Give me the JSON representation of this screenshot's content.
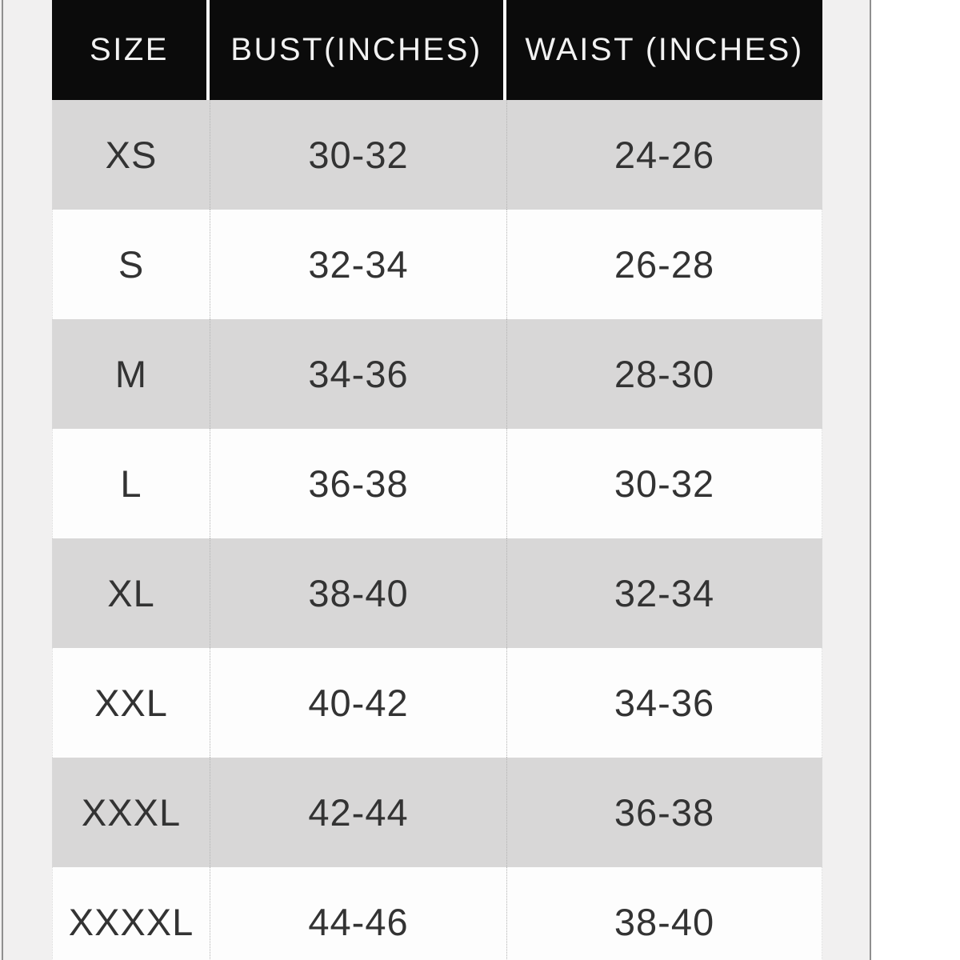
{
  "chart_data": {
    "type": "table",
    "columns": [
      {
        "id": "size",
        "label": "SIZE"
      },
      {
        "id": "bust",
        "label": "BUST(INCHES)"
      },
      {
        "id": "waist",
        "label": "WAIST (INCHES)"
      }
    ],
    "rows": [
      {
        "size": "XS",
        "bust": "30-32",
        "waist": "24-26"
      },
      {
        "size": "S",
        "bust": "32-34",
        "waist": "26-28"
      },
      {
        "size": "M",
        "bust": "34-36",
        "waist": "28-30"
      },
      {
        "size": "L",
        "bust": "36-38",
        "waist": "30-32"
      },
      {
        "size": "XL",
        "bust": "38-40",
        "waist": "32-34"
      },
      {
        "size": "XXL",
        "bust": "40-42",
        "waist": "34-36"
      },
      {
        "size": "XXXL",
        "bust": "42-44",
        "waist": "36-38"
      },
      {
        "size": "XXXXL",
        "bust": "44-46",
        "waist": "38-40"
      }
    ],
    "layout": {
      "header_position": "top",
      "row_striping": "odd-rows-gray",
      "column_divider_style": "dotted",
      "cropped_edges": [
        "top",
        "bottom"
      ]
    }
  },
  "colors": {
    "header_bg": "#0b0b0b",
    "header_text": "#f2f2f2",
    "row_alt_bg": "#d8d7d7",
    "row_bg": "#fdfdfd",
    "body_text": "#333333",
    "page_margin": "#f1f0f0",
    "edge_line": "#8f8f8f"
  }
}
